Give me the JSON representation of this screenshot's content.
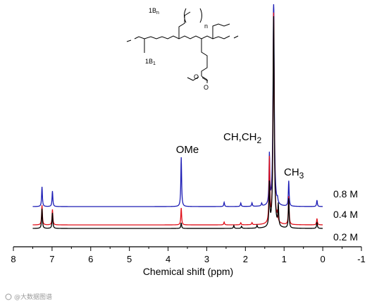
{
  "chart_data": {
    "type": "line",
    "xlabel": "Chemical shift (ppm)",
    "ylabel": "",
    "xlim": [
      8,
      -1
    ],
    "x_ticks": [
      "8",
      "7",
      "6",
      "5",
      "4",
      "3",
      "2",
      "1",
      "0",
      "-1"
    ],
    "grid": false,
    "legend": "none",
    "annotations": {
      "ome": "OMe",
      "ch_ch2_main": "CH,CH",
      "ch_ch2_sub": "2",
      "ch3_main": "CH",
      "ch3_sub": "3"
    },
    "series": [
      {
        "name": "0.8 M",
        "color": "#1d1db5",
        "peaks": [
          {
            "x": 7.26,
            "h": 28
          },
          {
            "x": 6.99,
            "h": 22
          },
          {
            "x": 3.66,
            "h": 70
          },
          {
            "x": 2.55,
            "h": 6
          },
          {
            "x": 2.12,
            "h": 5
          },
          {
            "x": 1.83,
            "h": 5
          },
          {
            "x": 1.58,
            "h": 4
          },
          {
            "x": 1.38,
            "h": 70
          },
          {
            "x": 1.27,
            "h": 300
          },
          {
            "x": 1.17,
            "h": 6
          },
          {
            "x": 0.88,
            "h": 36
          },
          {
            "x": 0.15,
            "h": 9
          }
        ]
      },
      {
        "name": "0.4 M",
        "color": "#e0101a",
        "peaks": [
          {
            "x": 7.26,
            "h": 28
          },
          {
            "x": 6.99,
            "h": 22
          },
          {
            "x": 3.66,
            "h": 24
          },
          {
            "x": 2.55,
            "h": 4
          },
          {
            "x": 2.12,
            "h": 3
          },
          {
            "x": 1.83,
            "h": 3
          },
          {
            "x": 1.38,
            "h": 90
          },
          {
            "x": 1.27,
            "h": 300
          },
          {
            "x": 1.17,
            "h": 12
          },
          {
            "x": 0.88,
            "h": 40
          },
          {
            "x": 0.15,
            "h": 9
          }
        ]
      },
      {
        "name": "0.2 M",
        "color": "#000000",
        "peaks": [
          {
            "x": 7.26,
            "h": 28
          },
          {
            "x": 6.99,
            "h": 22
          },
          {
            "x": 3.66,
            "h": 8
          },
          {
            "x": 2.3,
            "h": 4
          },
          {
            "x": 2.1,
            "h": 3
          },
          {
            "x": 1.7,
            "h": 4
          },
          {
            "x": 1.38,
            "h": 60
          },
          {
            "x": 1.27,
            "h": 300
          },
          {
            "x": 1.15,
            "h": 30
          },
          {
            "x": 0.88,
            "h": 42
          },
          {
            "x": 0.15,
            "h": 9
          }
        ]
      }
    ]
  },
  "structure": {
    "label_bn": "1B",
    "label_bn_sub": "n",
    "label_n": "n",
    "label_b1": "1B",
    "label_b1_sub": "1"
  },
  "watermark": "@大数据图谱"
}
